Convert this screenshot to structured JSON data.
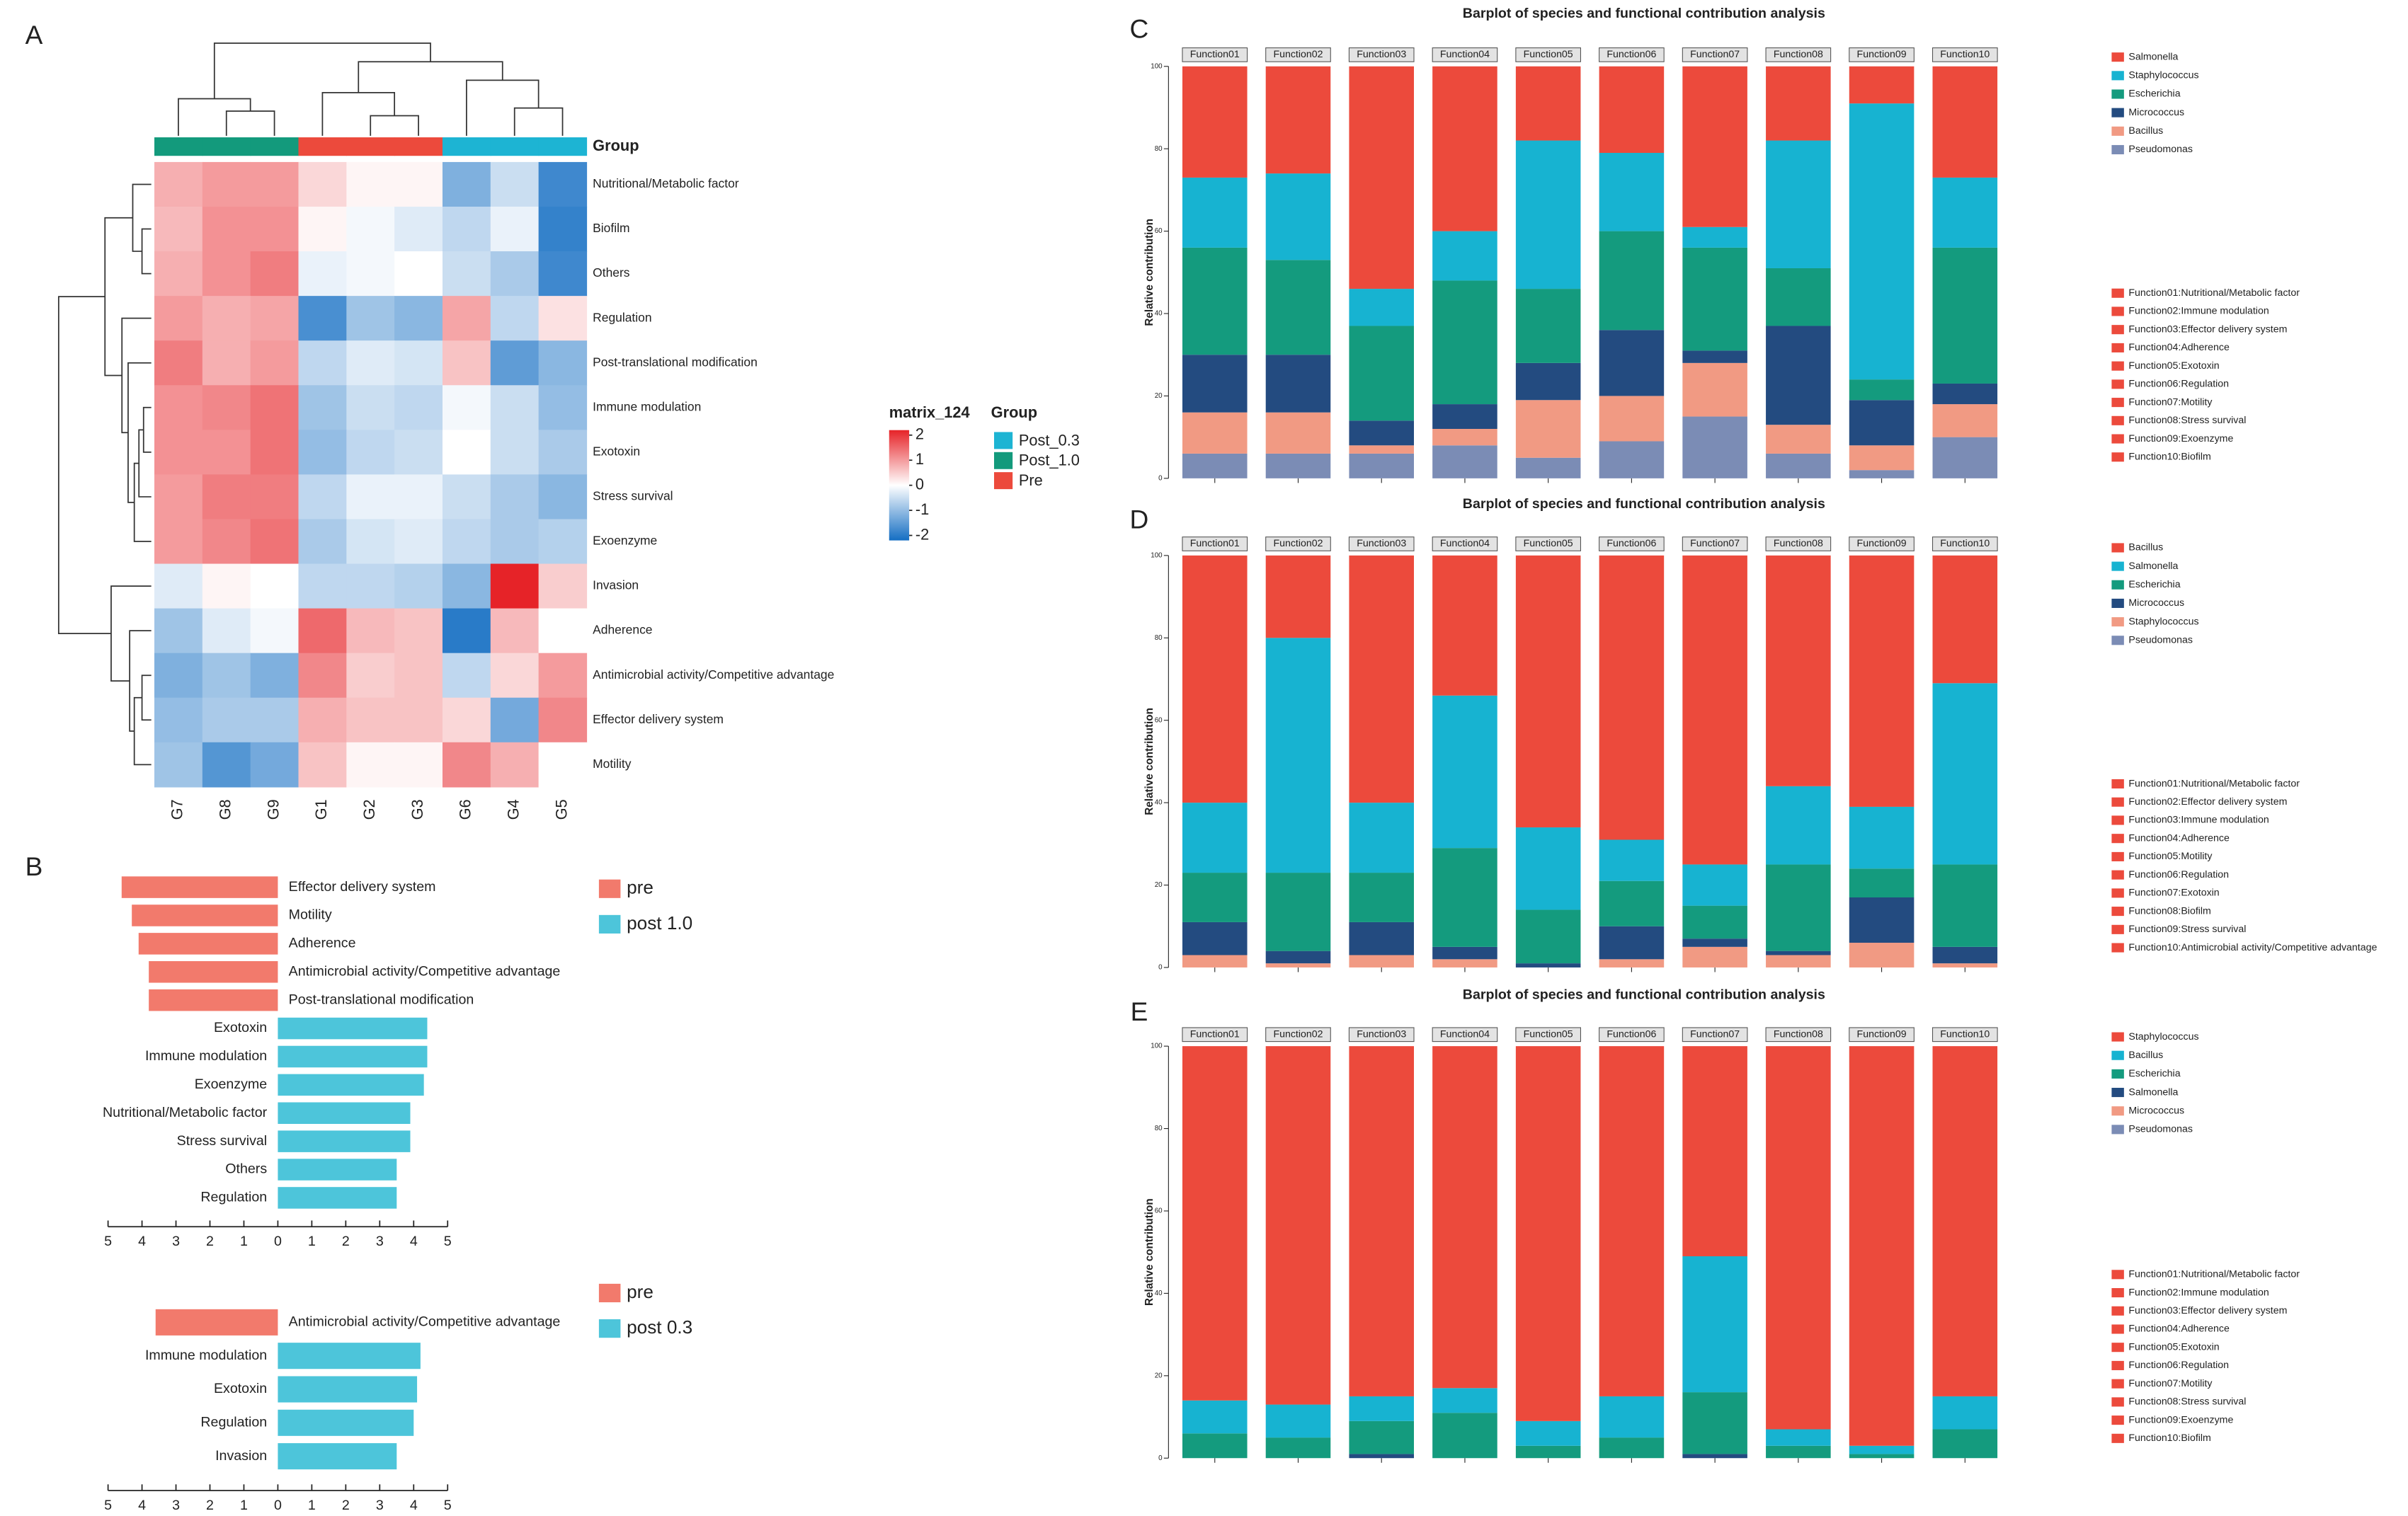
{
  "chart_data": [
    {
      "type": "heatmap",
      "panel": "A",
      "colorbar_title": "matrix_124",
      "group_title": "Group",
      "columns": [
        "G7",
        "G8",
        "G9",
        "G1",
        "G2",
        "G3",
        "G6",
        "G4",
        "G5"
      ],
      "rows": [
        "Nutritional/Metabolic factor",
        "Biofilm",
        "Others",
        "Regulation",
        "Post-translational modification",
        "Immune modulation",
        "Exotoxin",
        "Stress survival",
        "Exoenzyme",
        "Invasion",
        "Adherence",
        "Antimicrobial activity/Competitive advantage",
        "Effector delivery system",
        "Motility"
      ],
      "values": [
        [
          0.8,
          1.0,
          1.0,
          0.4,
          0.1,
          0.1,
          -1.2,
          -0.5,
          -1.8
        ],
        [
          0.7,
          1.1,
          1.1,
          0.1,
          -0.1,
          -0.3,
          -0.6,
          -0.2,
          -1.9
        ],
        [
          0.8,
          1.1,
          1.3,
          -0.2,
          -0.1,
          0.0,
          -0.5,
          -0.8,
          -1.8
        ],
        [
          1.0,
          0.8,
          0.9,
          -1.7,
          -0.9,
          -1.1,
          0.9,
          -0.6,
          0.3
        ],
        [
          1.3,
          0.8,
          1.0,
          -0.6,
          -0.3,
          -0.4,
          0.6,
          -1.5,
          -1.1
        ],
        [
          1.1,
          1.2,
          1.4,
          -0.9,
          -0.5,
          -0.6,
          -0.1,
          -0.5,
          -1.0
        ],
        [
          1.1,
          1.1,
          1.4,
          -1.0,
          -0.6,
          -0.5,
          0.0,
          -0.5,
          -0.8
        ],
        [
          1.0,
          1.3,
          1.3,
          -0.6,
          -0.2,
          -0.2,
          -0.5,
          -0.8,
          -1.1
        ],
        [
          1.0,
          1.2,
          1.4,
          -0.8,
          -0.4,
          -0.3,
          -0.6,
          -0.8,
          -0.7
        ],
        [
          -0.3,
          0.1,
          0.0,
          -0.6,
          -0.6,
          -0.7,
          -1.1,
          2.2,
          0.5
        ],
        [
          -0.9,
          -0.3,
          -0.1,
          1.5,
          0.7,
          0.6,
          -2.0,
          0.7,
          0.0
        ],
        [
          -1.2,
          -0.9,
          -1.2,
          1.2,
          0.5,
          0.6,
          -0.6,
          0.4,
          1.0
        ],
        [
          -1.0,
          -0.8,
          -0.8,
          0.8,
          0.6,
          0.6,
          0.4,
          -1.3,
          1.2
        ],
        [
          -0.9,
          -1.6,
          -1.3,
          0.6,
          0.1,
          0.1,
          1.2,
          0.8,
          0.0
        ]
      ],
      "groups": [
        {
          "name": "Post_0.3",
          "color": "#1db4d3"
        },
        {
          "name": "Post_1.0",
          "color": "#139a7c"
        },
        {
          "name": "Pre",
          "color": "#ec4a3c"
        }
      ],
      "column_groups": [
        1,
        1,
        1,
        2,
        2,
        2,
        0,
        0,
        0
      ],
      "zlim": [
        -2.2,
        2.2
      ],
      "zticks": [
        2,
        1,
        0,
        -1,
        -2
      ]
    },
    {
      "type": "diverging_bar",
      "panel": "B",
      "categories": [
        "Effector delivery system",
        "Motility",
        "Adherence",
        "Antimicrobial activity/Competitive advantage",
        "Post-translational modification",
        "Exotoxin",
        "Immune modulation",
        "Exoenzyme",
        "Nutritional/Metabolic factor",
        "Stress survival",
        "Others",
        "Regulation"
      ],
      "series": [
        {
          "name": "pre",
          "color": "#f27a6c",
          "values": [
            -4.6,
            -4.3,
            -4.1,
            -3.8,
            -3.8,
            null,
            null,
            null,
            null,
            null,
            null,
            null
          ]
        },
        {
          "name": "post 1.0",
          "color": "#4dc5da",
          "values": [
            null,
            null,
            null,
            null,
            null,
            4.4,
            4.4,
            4.3,
            3.9,
            3.9,
            3.5,
            3.5
          ]
        }
      ],
      "xlim": [
        -5,
        5
      ],
      "xticks": [
        {
          "value": -5,
          "label": "5"
        },
        {
          "value": -4,
          "label": "4"
        },
        {
          "value": -3,
          "label": "3"
        },
        {
          "value": -2,
          "label": "2"
        },
        {
          "value": -1,
          "label": "1"
        },
        0,
        1,
        2,
        3,
        4,
        5
      ]
    },
    {
      "type": "diverging_bar",
      "categories": [
        "Antimicrobial activity/Competitive advantage",
        "Immune modulation",
        "Exotoxin",
        "Regulation",
        "Invasion"
      ],
      "series": [
        {
          "name": "pre",
          "color": "#f27a6c",
          "values": [
            -3.6,
            null,
            null,
            null,
            null
          ]
        },
        {
          "name": "post 0.3",
          "color": "#4dc5da",
          "values": [
            null,
            4.2,
            4.1,
            4.0,
            3.5
          ]
        }
      ],
      "xlim": [
        -5,
        5
      ],
      "xticks": [
        {
          "value": -5,
          "label": "5"
        },
        {
          "value": -4,
          "label": "4"
        },
        {
          "value": -3,
          "label": "3"
        },
        {
          "value": -2,
          "label": "2"
        },
        {
          "value": -1,
          "label": "1"
        },
        0,
        1,
        2,
        3,
        4,
        5
      ]
    },
    {
      "type": "stacked_bar",
      "panel": "C",
      "title": "Barplot of species and functional contribution analysis",
      "ylabel": "Relative contribution",
      "categories": [
        "Function01",
        "Function02",
        "Function03",
        "Function04",
        "Function05",
        "Function06",
        "Function07",
        "Function08",
        "Function09",
        "Function10"
      ],
      "series": [
        {
          "name": "Salmonella",
          "color": "#ec4a3c",
          "values": [
            27,
            26,
            54,
            40,
            18,
            21,
            39,
            18,
            9,
            27
          ]
        },
        {
          "name": "Staphylococcus",
          "color": "#17b3d1",
          "values": [
            17,
            21,
            9,
            12,
            36,
            19,
            5,
            31,
            67,
            17
          ]
        },
        {
          "name": "Escherichia",
          "color": "#149b7e",
          "values": [
            26,
            23,
            23,
            30,
            18,
            24,
            25,
            14,
            5,
            33
          ]
        },
        {
          "name": "Micrococcus",
          "color": "#234b80",
          "values": [
            14,
            14,
            6,
            6,
            9,
            16,
            3,
            24,
            11,
            5
          ]
        },
        {
          "name": "Bacillus",
          "color": "#f19a83",
          "values": [
            10,
            10,
            2,
            4,
            14,
            11,
            13,
            7,
            6,
            8
          ]
        },
        {
          "name": "Pseudomonas",
          "color": "#7b8cb5",
          "values": [
            6,
            6,
            6,
            8,
            5,
            9,
            15,
            6,
            2,
            10
          ]
        }
      ],
      "ylim": [
        0,
        100
      ],
      "yticks": [
        0,
        20,
        40,
        60,
        80,
        100
      ],
      "legend_color": "#ec4a3c",
      "function_legend": [
        "Function01:Nutritional/Metabolic factor",
        "Function02:Immune modulation",
        "Function03:Effector delivery system",
        "Function04:Adherence",
        "Function05:Exotoxin",
        "Function06:Regulation",
        "Function07:Motility",
        "Function08:Stress survival",
        "Function09:Exoenzyme",
        "Function10:Biofilm"
      ]
    },
    {
      "type": "stacked_bar",
      "panel": "D",
      "title": "Barplot of species and functional contribution analysis",
      "ylabel": "Relative contribution",
      "categories": [
        "Function01",
        "Function02",
        "Function03",
        "Function04",
        "Function05",
        "Function06",
        "Function07",
        "Function08",
        "Function09",
        "Function10"
      ],
      "series": [
        {
          "name": "Bacillus",
          "color": "#ec4a3c",
          "values": [
            60,
            20,
            60,
            34,
            66,
            69,
            75,
            56,
            61,
            31
          ]
        },
        {
          "name": "Salmonella",
          "color": "#17b3d1",
          "values": [
            17,
            57,
            17,
            37,
            20,
            10,
            10,
            19,
            15,
            44
          ]
        },
        {
          "name": "Escherichia",
          "color": "#149b7e",
          "values": [
            12,
            19,
            12,
            24,
            13,
            11,
            8,
            21,
            7,
            20
          ]
        },
        {
          "name": "Micrococcus",
          "color": "#234b80",
          "values": [
            8,
            3,
            8,
            3,
            1,
            8,
            2,
            1,
            11,
            4
          ]
        },
        {
          "name": "Staphylococcus",
          "color": "#f19a83",
          "values": [
            3,
            1,
            3,
            2,
            0,
            2,
            5,
            3,
            6,
            1
          ]
        },
        {
          "name": "Pseudomonas",
          "color": "#7b8cb5",
          "values": [
            0,
            0,
            0,
            0,
            0,
            0,
            0,
            0,
            0,
            0
          ]
        }
      ],
      "ylim": [
        0,
        100
      ],
      "yticks": [
        0,
        20,
        40,
        60,
        80,
        100
      ],
      "legend_color": "#ec4a3c",
      "function_legend": [
        "Function01:Nutritional/Metabolic factor",
        "Function02:Effector delivery system",
        "Function03:Immune modulation",
        "Function04:Adherence",
        "Function05:Motility",
        "Function06:Regulation",
        "Function07:Exotoxin",
        "Function08:Biofilm",
        "Function09:Stress survival",
        "Function10:Antimicrobial activity/Competitive advantage"
      ]
    },
    {
      "type": "stacked_bar",
      "panel": "E",
      "title": "Barplot of species and functional contribution analysis",
      "ylabel": "Relative contribution",
      "categories": [
        "Function01",
        "Function02",
        "Function03",
        "Function04",
        "Function05",
        "Function06",
        "Function07",
        "Function08",
        "Function09",
        "Function10"
      ],
      "series": [
        {
          "name": "Staphylococcus",
          "color": "#ec4a3c",
          "values": [
            86,
            87,
            85,
            83,
            91,
            85,
            51,
            93,
            97,
            85
          ]
        },
        {
          "name": "Bacillus",
          "color": "#17b3d1",
          "values": [
            8,
            8,
            6,
            6,
            6,
            10,
            33,
            4,
            2,
            8
          ]
        },
        {
          "name": "Escherichia",
          "color": "#149b7e",
          "values": [
            6,
            5,
            8,
            11,
            3,
            5,
            15,
            3,
            1,
            7
          ]
        },
        {
          "name": "Salmonella",
          "color": "#234b80",
          "values": [
            0,
            0,
            1,
            0,
            0,
            0,
            1,
            0,
            0,
            0
          ]
        },
        {
          "name": "Micrococcus",
          "color": "#f19a83",
          "values": [
            0,
            0,
            0,
            0,
            0,
            0,
            0,
            0,
            0,
            0
          ]
        },
        {
          "name": "Pseudomonas",
          "color": "#7b8cb5",
          "values": [
            0,
            0,
            0,
            0,
            0,
            0,
            0,
            0,
            0,
            0
          ]
        }
      ],
      "ylim": [
        0,
        100
      ],
      "yticks": [
        0,
        20,
        40,
        60,
        80,
        100
      ],
      "legend_color": "#ec4a3c",
      "function_legend": [
        "Function01:Nutritional/Metabolic factor",
        "Function02:Immune modulation",
        "Function03:Effector delivery system",
        "Function04:Adherence",
        "Function05:Exotoxin",
        "Function06:Regulation",
        "Function07:Motility",
        "Function08:Stress survival",
        "Function09:Exoenzyme",
        "Function10:Biofilm"
      ]
    }
  ]
}
